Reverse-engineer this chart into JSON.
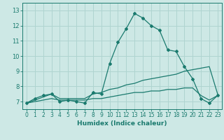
{
  "xlabel": "Humidex (Indice chaleur)",
  "x_values": [
    0,
    1,
    2,
    3,
    4,
    5,
    6,
    7,
    8,
    9,
    10,
    11,
    12,
    13,
    14,
    15,
    16,
    17,
    18,
    19,
    20,
    21,
    22,
    23
  ],
  "y_main": [
    6.9,
    7.2,
    7.4,
    7.5,
    7.0,
    7.1,
    7.0,
    6.9,
    7.6,
    7.5,
    9.5,
    10.9,
    11.8,
    12.8,
    12.5,
    12.0,
    11.7,
    10.4,
    10.3,
    9.3,
    8.5,
    7.2,
    6.9,
    7.4
  ],
  "y_upper": [
    6.9,
    7.1,
    7.3,
    7.5,
    7.2,
    7.2,
    7.2,
    7.2,
    7.5,
    7.6,
    7.8,
    7.9,
    8.1,
    8.2,
    8.4,
    8.5,
    8.6,
    8.7,
    8.8,
    9.0,
    9.1,
    9.2,
    9.3,
    7.5
  ],
  "y_lower": [
    6.9,
    7.0,
    7.1,
    7.2,
    7.1,
    7.1,
    7.1,
    7.1,
    7.2,
    7.2,
    7.3,
    7.4,
    7.5,
    7.6,
    7.6,
    7.7,
    7.7,
    7.8,
    7.8,
    7.9,
    7.9,
    7.4,
    7.1,
    7.4
  ],
  "ylim": [
    6.5,
    13.5
  ],
  "yticks": [
    7,
    8,
    9,
    10,
    11,
    12,
    13
  ],
  "xlim": [
    -0.5,
    23.5
  ],
  "line_color": "#1a7a6e",
  "bg_color": "#cde8e5",
  "grid_color": "#afd4d0"
}
